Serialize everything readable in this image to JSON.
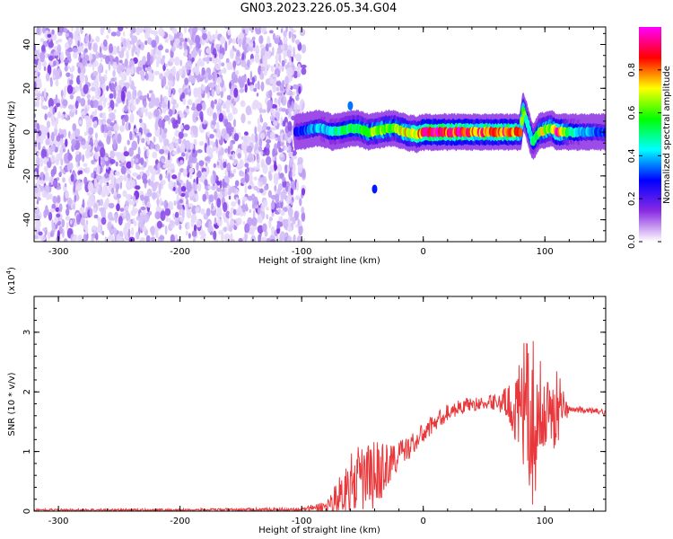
{
  "title": "GN03.2023.226.05.34.G04",
  "chart_data": [
    {
      "type": "heatmap",
      "xlabel": "Height of straight line (km)",
      "ylabel": "Frequency (Hz)",
      "xlim": [
        -320,
        150
      ],
      "ylim": [
        -50,
        48
      ],
      "xticks": [
        -300,
        -200,
        -100,
        0,
        100
      ],
      "yticks": [
        -40,
        -20,
        0,
        20,
        40
      ],
      "noise_region_x": [
        -320,
        -98
      ],
      "colorbar": {
        "label": "Normalized spectral amplitude",
        "range": [
          0,
          1
        ],
        "ticks": [
          0,
          0.2,
          0.4,
          0.6,
          0.8
        ],
        "tick_labels": [
          "0.0",
          "0.2",
          "0.4",
          "0.6",
          "0.8"
        ],
        "colormap": [
          "#ffffff",
          "#8a2be2",
          "#0000ff",
          "#00ffff",
          "#00ff00",
          "#ffff00",
          "#ff0000",
          "#ff00ff"
        ]
      },
      "ridge": {
        "x": [
          -105,
          -95,
          -85,
          -75,
          -65,
          -55,
          -45,
          -35,
          -25,
          -15,
          -5,
          0,
          10,
          20,
          30,
          40,
          50,
          60,
          70,
          80,
          82,
          85,
          90,
          95,
          100,
          105,
          110,
          120,
          130,
          140,
          150
        ],
        "y": [
          0,
          1,
          2,
          0,
          1,
          2,
          0,
          1,
          2,
          0,
          -1,
          0,
          0,
          0,
          0,
          0,
          0,
          0,
          0,
          0,
          10,
          5,
          -5,
          0,
          1,
          2,
          0,
          0,
          0,
          0,
          0
        ],
        "amplitude": [
          0.25,
          0.35,
          0.4,
          0.45,
          0.5,
          0.55,
          0.6,
          0.65,
          0.6,
          0.7,
          0.75,
          0.9,
          0.95,
          0.85,
          0.9,
          0.8,
          0.85,
          0.8,
          0.85,
          0.75,
          0.7,
          0.5,
          0.45,
          0.6,
          0.7,
          0.6,
          0.9,
          0.5,
          0.4,
          0.35,
          0.3
        ]
      },
      "artifacts": [
        {
          "x": -60,
          "y": 12,
          "amp": 0.35
        },
        {
          "x": -40,
          "y": -26,
          "amp": 0.3
        }
      ]
    },
    {
      "type": "line",
      "xlabel": "Height of straight line (km)",
      "ylabel": "SNR (10 * v/v)",
      "scale_label_base": "(x10",
      "scale_label_exp": "4",
      "scale_label_end": ")",
      "xlim": [
        -320,
        150
      ],
      "ylim": [
        0,
        3.6
      ],
      "xticks": [
        -300,
        -200,
        -100,
        0,
        100
      ],
      "yticks": [
        0,
        1,
        2,
        3
      ],
      "series": [
        {
          "color": "#e8383b",
          "envelope": {
            "x": [
              -320,
              -200,
              -100,
              -80,
              -70,
              -60,
              -50,
              -40,
              -30,
              -20,
              -10,
              0,
              10,
              20,
              30,
              40,
              50,
              60,
              70,
              80,
              85,
              90,
              95,
              100,
              105,
              110,
              115,
              120,
              130,
              140,
              150
            ],
            "base": [
              0.02,
              0.02,
              0.03,
              0.08,
              0.25,
              0.45,
              0.55,
              0.6,
              0.75,
              0.95,
              1.1,
              1.3,
              1.5,
              1.65,
              1.75,
              1.8,
              1.8,
              1.85,
              1.8,
              1.7,
              1.5,
              1.5,
              1.6,
              1.7,
              1.65,
              1.7,
              1.75,
              1.7,
              1.7,
              1.68,
              1.65
            ],
            "spread": [
              0.02,
              0.02,
              0.03,
              0.1,
              0.3,
              0.5,
              0.6,
              0.6,
              0.4,
              0.25,
              0.2,
              0.18,
              0.15,
              0.15,
              0.12,
              0.12,
              0.1,
              0.15,
              0.3,
              0.8,
              1.6,
              1.4,
              1.0,
              0.6,
              0.5,
              0.9,
              0.3,
              0.08,
              0.05,
              0.05,
              0.05
            ]
          }
        }
      ]
    }
  ]
}
